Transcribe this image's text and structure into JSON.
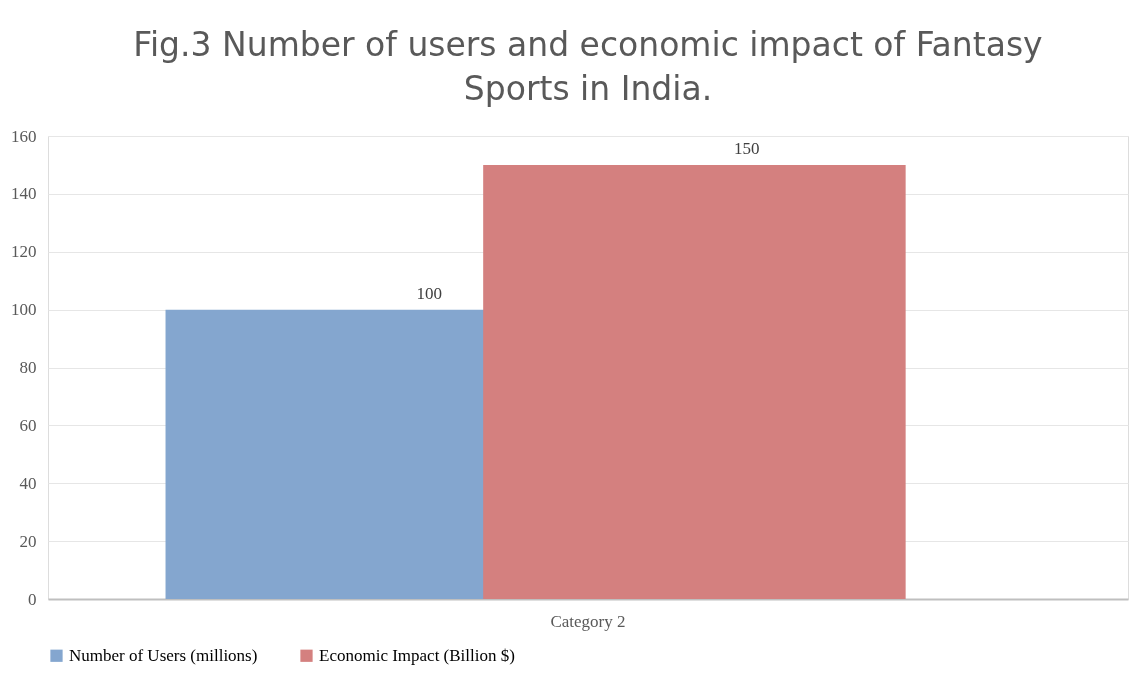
{
  "chart_data": {
    "type": "bar",
    "title": "Fig.3 Number of users and economic impact of Fantasy Sports in India.",
    "categories": [
      "Category 2"
    ],
    "series": [
      {
        "name": "Number of Users (millions)",
        "color": "#84a6cf",
        "values": [
          100
        ]
      },
      {
        "name": "Economic Impact (Billion $)",
        "color": "#d4807f",
        "values": [
          150
        ]
      }
    ],
    "ylim": [
      0,
      160
    ],
    "yticks": [
      0,
      20,
      40,
      60,
      80,
      100,
      120,
      140,
      160
    ],
    "grid": "y",
    "legend": "bottom",
    "data_labels": true
  }
}
